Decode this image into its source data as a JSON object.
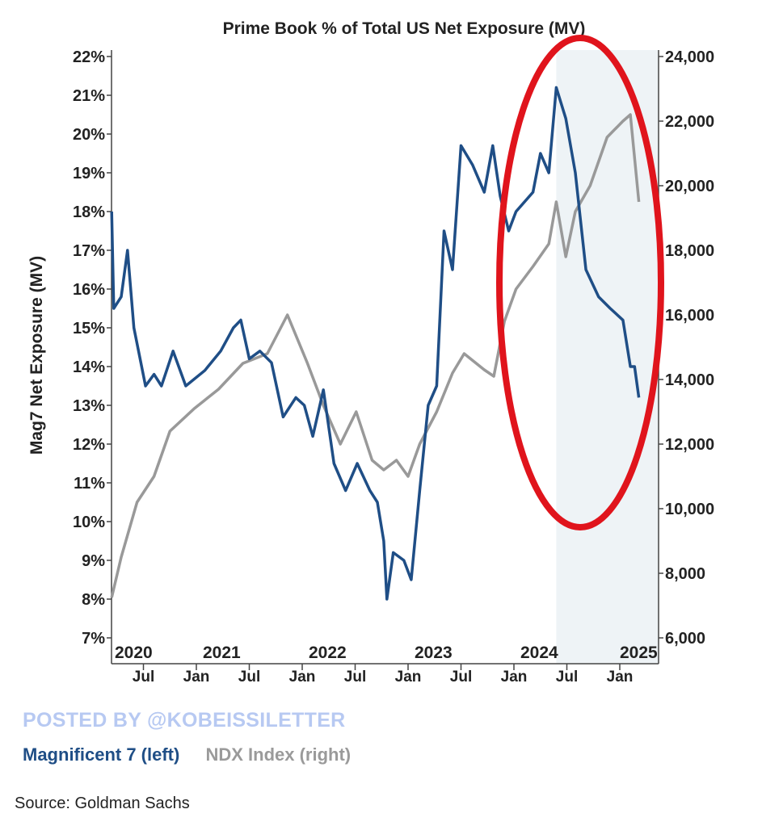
{
  "chart_data": {
    "type": "line",
    "title": "Prime Book % of Total US Net Exposure (MV)",
    "ylabel_left": "Mag7 Net Exposure (MV)",
    "ylabel_right": "",
    "ylim_left": [
      7,
      22
    ],
    "ylim_right": [
      6000,
      24000
    ],
    "left_ticks": [
      "22%",
      "21%",
      "20%",
      "19%",
      "18%",
      "17%",
      "16%",
      "15%",
      "14%",
      "13%",
      "12%",
      "11%",
      "10%",
      "9%",
      "8%",
      "7%"
    ],
    "right_ticks": [
      "24,000",
      "22,000",
      "20,000",
      "18,000",
      "16,000",
      "14,000",
      "12,000",
      "10,000",
      "8,000",
      "6,000"
    ],
    "year_labels": [
      {
        "t": 2020,
        "label": "2020"
      },
      {
        "t": 2021,
        "label": "2021"
      },
      {
        "t": 2022,
        "label": "2022"
      },
      {
        "t": 2023,
        "label": "2023"
      },
      {
        "t": 2024,
        "label": "2024"
      },
      {
        "t": 2025,
        "label": "2025"
      }
    ],
    "month_labels": [
      {
        "t": 2020.5,
        "label": "Jul"
      },
      {
        "t": 2021,
        "label": "Jan"
      },
      {
        "t": 2021.5,
        "label": "Jul"
      },
      {
        "t": 2022,
        "label": "Jan"
      },
      {
        "t": 2022.5,
        "label": "Jul"
      },
      {
        "t": 2023,
        "label": "Jan"
      },
      {
        "t": 2023.5,
        "label": "Jul"
      },
      {
        "t": 2024,
        "label": "Jan"
      },
      {
        "t": 2024.5,
        "label": "Jul"
      },
      {
        "t": 2025,
        "label": "Jan"
      }
    ],
    "xlim": [
      2020.2,
      2025.36
    ],
    "shaded_from": 2024.4,
    "series": [
      {
        "name": "Magnificent 7 (left)",
        "axis": "left",
        "color": "#1f4e86",
        "x": [
          2020.2,
          2020.22,
          2020.29,
          2020.35,
          2020.41,
          2020.52,
          2020.6,
          2020.67,
          2020.78,
          2020.9,
          2021.08,
          2021.23,
          2021.35,
          2021.42,
          2021.5,
          2021.6,
          2021.71,
          2021.82,
          2021.94,
          2022.02,
          2022.1,
          2022.2,
          2022.3,
          2022.41,
          2022.52,
          2022.64,
          2022.71,
          2022.77,
          2022.8,
          2022.86,
          2022.96,
          2023.03,
          2023.11,
          2023.19,
          2023.27,
          2023.34,
          2023.42,
          2023.5,
          2023.61,
          2023.72,
          2023.8,
          2023.87,
          2023.95,
          2024.02,
          2024.18,
          2024.25,
          2024.33,
          2024.4,
          2024.49,
          2024.58,
          2024.68,
          2024.8,
          2024.91,
          2025.03,
          2025.1,
          2025.14,
          2025.18
        ],
        "values": [
          18.0,
          15.5,
          15.8,
          17.0,
          15.0,
          13.5,
          13.8,
          13.5,
          14.4,
          13.5,
          13.9,
          14.4,
          15.0,
          15.2,
          14.2,
          14.4,
          14.1,
          12.7,
          13.2,
          13.0,
          12.2,
          13.4,
          11.5,
          10.8,
          11.5,
          10.8,
          10.5,
          9.5,
          8.0,
          9.2,
          9.0,
          8.5,
          10.8,
          13.0,
          13.5,
          17.5,
          16.5,
          19.7,
          19.2,
          18.5,
          19.7,
          18.4,
          17.5,
          18.0,
          18.5,
          19.5,
          19.0,
          21.2,
          20.4,
          19.0,
          16.5,
          15.8,
          15.5,
          15.2,
          14.0,
          14.0,
          13.2
        ]
      },
      {
        "name": "NDX Index (right)",
        "axis": "right",
        "color": "#999999",
        "x": [
          2020.2,
          2020.29,
          2020.44,
          2020.6,
          2020.75,
          2020.98,
          2021.21,
          2021.44,
          2021.67,
          2021.86,
          2022.05,
          2022.2,
          2022.36,
          2022.51,
          2022.66,
          2022.77,
          2022.89,
          2023.0,
          2023.11,
          2023.27,
          2023.42,
          2023.53,
          2023.72,
          2023.81,
          2023.91,
          2024.02,
          2024.18,
          2024.33,
          2024.4,
          2024.49,
          2024.58,
          2024.72,
          2024.88,
          2025.03,
          2025.1,
          2025.18
        ],
        "values": [
          7250,
          8500,
          10200,
          11000,
          12400,
          13100,
          13700,
          14500,
          14800,
          16000,
          14500,
          13200,
          12000,
          13000,
          11500,
          11200,
          11500,
          11000,
          12000,
          13000,
          14200,
          14800,
          14300,
          14100,
          15800,
          16800,
          17500,
          18200,
          19500,
          17800,
          19200,
          20000,
          21500,
          22000,
          22200,
          19500
        ]
      }
    ],
    "annotation": "red ellipse around 2024-2025 region",
    "legend": "bottom-left"
  },
  "watermark": "POSTED BY @KOBEISSILETTER",
  "legend": {
    "item1": "Magnificent 7 (left)",
    "item2": "NDX Index (right)"
  },
  "source": "Source: Goldman Sachs"
}
